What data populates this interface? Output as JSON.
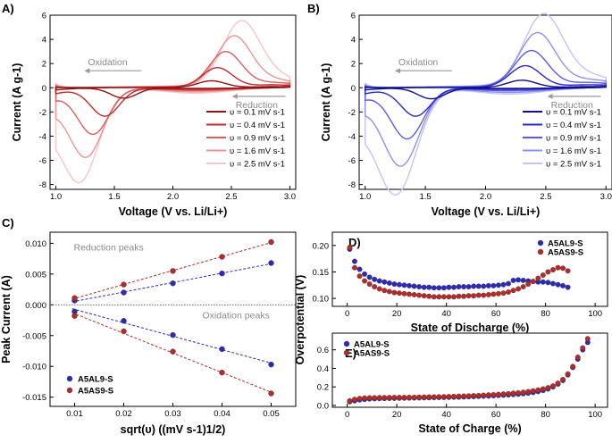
{
  "figure": {
    "panel_labels": [
      "A)",
      "B)",
      "C)",
      "D)",
      "E)"
    ]
  },
  "chart_data": [
    {
      "id": "A",
      "type": "line",
      "title": "",
      "xlabel": "Voltage (V vs. Li/Li+)",
      "ylabel": "Current (A g-1)",
      "xlim": [
        0.95,
        3.05
      ],
      "ylim": [
        -8.4,
        6.0
      ],
      "xticks": [
        1.0,
        1.5,
        2.0,
        2.5,
        3.0
      ],
      "yticks": [
        -8,
        -6,
        -4,
        -2,
        0,
        2,
        4,
        6
      ],
      "legend_position": "lower-right",
      "annotations": [
        {
          "text": "Oxidation",
          "x": 1.35,
          "y": 1.85,
          "arrow": "left"
        },
        {
          "text": "Reduction",
          "x": 2.75,
          "y": -1.3,
          "arrow": "left"
        }
      ],
      "series": [
        {
          "name": "υ = 0.1 mV s-1",
          "color": "#8b1414",
          "ox_peak": [
            2.33,
            0.55
          ],
          "red_peak": [
            1.58,
            -0.85
          ],
          "ox_tail": 0.1,
          "red_tail": -0.18
        },
        {
          "name": "υ = 0.4 mV s-1",
          "color": "#c42a2a",
          "ox_peak": [
            2.38,
            1.6
          ],
          "red_peak": [
            1.42,
            -2.3
          ],
          "ox_tail": 0.25,
          "red_tail": -0.5
        },
        {
          "name": "υ = 0.9 mV s-1",
          "color": "#dc5e5e",
          "ox_peak": [
            2.45,
            2.85
          ],
          "red_peak": [
            1.32,
            -3.7
          ],
          "ox_tail": 0.45,
          "red_tail": -0.9
        },
        {
          "name": "υ = 1.6 mV s-1",
          "color": "#ec9494",
          "ox_peak": [
            2.52,
            4.05
          ],
          "red_peak": [
            1.26,
            -5.4
          ],
          "ox_tail": 0.7,
          "red_tail": -1.5
        },
        {
          "name": "υ = 2.5 mV s-1",
          "color": "#f6c6c6",
          "ox_peak": [
            2.58,
            5.1
          ],
          "red_peak": [
            1.21,
            -7.1
          ],
          "ox_tail": 1.1,
          "red_tail": -2.3
        }
      ]
    },
    {
      "id": "B",
      "type": "line",
      "title": "",
      "xlabel": "Voltage (V vs. Li/Li+)",
      "ylabel": "Current (A g-1)",
      "xlim": [
        0.95,
        3.05
      ],
      "ylim": [
        -8.4,
        6.0
      ],
      "xticks": [
        1.0,
        1.5,
        2.0,
        2.5,
        3.0
      ],
      "yticks": [
        -8,
        -6,
        -4,
        -2,
        0,
        2,
        4,
        6
      ],
      "legend_position": "lower-right",
      "annotations": [
        {
          "text": "Oxidation",
          "x": 1.35,
          "y": 1.85,
          "arrow": "left"
        },
        {
          "text": "Reduction",
          "x": 2.75,
          "y": -1.3,
          "arrow": "left"
        }
      ],
      "series": [
        {
          "name": "υ = 0.1 mV s-1",
          "color": "#10108c",
          "ox_peak": [
            2.3,
            0.6
          ],
          "red_peak": [
            1.55,
            -0.9
          ],
          "ox_tail": 0.1,
          "red_tail": -0.18
        },
        {
          "name": "υ = 0.4 mV s-1",
          "color": "#2828c8",
          "ox_peak": [
            2.33,
            1.75
          ],
          "red_peak": [
            1.42,
            -2.3
          ],
          "ox_tail": 0.25,
          "red_tail": -0.5
        },
        {
          "name": "υ = 0.9 mV s-1",
          "color": "#5c5ce0",
          "ox_peak": [
            2.38,
            2.95
          ],
          "red_peak": [
            1.35,
            -4.1
          ],
          "ox_tail": 0.45,
          "red_tail": -0.9
        },
        {
          "name": "υ = 1.6 mV s-1",
          "color": "#9090ec",
          "ox_peak": [
            2.43,
            4.35
          ],
          "red_peak": [
            1.3,
            -6.2
          ],
          "ox_tail": 0.7,
          "red_tail": -1.5
        },
        {
          "name": "υ = 2.5 mV s-1",
          "color": "#c4c4f6",
          "ox_peak": [
            2.48,
            5.8
          ],
          "red_peak": [
            1.26,
            -8.3
          ],
          "ox_tail": 1.1,
          "red_tail": -2.3
        }
      ]
    },
    {
      "id": "C",
      "type": "scatter",
      "title": "",
      "xlabel": "sqrt(υ) ((mV s-1)1/2)",
      "ylabel": "Peak Current (A)",
      "xlim": [
        0.005,
        0.055
      ],
      "ylim": [
        -0.0165,
        0.0118
      ],
      "xticks": [
        0.01,
        0.02,
        0.03,
        0.04,
        0.05
      ],
      "yticks": [
        -0.015,
        -0.01,
        -0.005,
        0.0,
        0.005,
        0.01
      ],
      "ytick_labels": [
        "-0.015",
        "-0.010",
        "-0.005",
        "0.000",
        "0.005",
        "0.010"
      ],
      "legend_position": "lower-left",
      "annotations": [
        {
          "text": "Reduction peaks",
          "x": 0.008,
          "y": 0.0088
        },
        {
          "text": "Oxidation peaks",
          "x": 0.036,
          "y": -0.0022
        }
      ],
      "x": [
        0.01,
        0.02,
        0.03,
        0.04,
        0.05
      ],
      "series": [
        {
          "name": "A5AL9-S",
          "color": "#2b2bb8",
          "values_reduction": [
            0.0007,
            0.002,
            0.0035,
            0.0051,
            0.0068
          ],
          "values_oxidation": [
            -0.0011,
            -0.0026,
            -0.0049,
            -0.0072,
            -0.0097
          ]
        },
        {
          "name": "A5AS9-S",
          "color": "#b52a2a",
          "values_reduction": [
            0.0011,
            0.0033,
            0.0055,
            0.0078,
            0.0102
          ],
          "values_oxidation": [
            -0.0018,
            -0.0043,
            -0.0076,
            -0.011,
            -0.0144
          ]
        }
      ]
    },
    {
      "id": "D",
      "type": "scatter",
      "title": "",
      "xlabel": "State of Discharge (%)",
      "ylabel": "Overpotential (V)",
      "xlim": [
        -6,
        105
      ],
      "ylim": [
        0.085,
        0.225
      ],
      "xticks": [
        0,
        20,
        40,
        60,
        80,
        100
      ],
      "yticks": [
        0.1,
        0.15,
        0.2
      ],
      "ytick_labels": [
        "0.10",
        "0.15",
        "0.20"
      ],
      "legend_position": "top-right",
      "series": [
        {
          "name": "A5AL9-S",
          "color": "#2b2bb8",
          "x": [
            1,
            3,
            5,
            7,
            9,
            11,
            13,
            15,
            17,
            19,
            21,
            23,
            25,
            27,
            29,
            31,
            33,
            35,
            37,
            39,
            41,
            43,
            45,
            47,
            49,
            51,
            53,
            55,
            57,
            59,
            61,
            63,
            65,
            67,
            69,
            71,
            73,
            75,
            77,
            79,
            81,
            83,
            85,
            87,
            89
          ],
          "values": [
            0.193,
            0.17,
            0.155,
            0.146,
            0.14,
            0.136,
            0.133,
            0.131,
            0.129,
            0.127,
            0.126,
            0.125,
            0.124,
            0.123,
            0.122,
            0.121,
            0.121,
            0.12,
            0.12,
            0.12,
            0.121,
            0.121,
            0.122,
            0.122,
            0.122,
            0.123,
            0.123,
            0.123,
            0.124,
            0.124,
            0.125,
            0.126,
            0.128,
            0.134,
            0.135,
            0.134,
            0.133,
            0.132,
            0.131,
            0.131,
            0.13,
            0.128,
            0.126,
            0.124,
            0.121
          ]
        },
        {
          "name": "A5AS9-S",
          "color": "#b52a2a",
          "x": [
            1,
            3,
            5,
            7,
            9,
            11,
            13,
            15,
            17,
            19,
            21,
            23,
            25,
            27,
            29,
            31,
            33,
            35,
            37,
            39,
            41,
            43,
            45,
            47,
            49,
            51,
            53,
            55,
            57,
            59,
            61,
            63,
            65,
            67,
            69,
            71,
            73,
            75,
            77,
            79,
            81,
            83,
            85,
            87,
            89
          ],
          "values": [
            0.196,
            0.158,
            0.142,
            0.133,
            0.127,
            0.122,
            0.118,
            0.115,
            0.113,
            0.111,
            0.11,
            0.109,
            0.108,
            0.107,
            0.106,
            0.105,
            0.104,
            0.103,
            0.103,
            0.103,
            0.103,
            0.103,
            0.104,
            0.104,
            0.105,
            0.105,
            0.106,
            0.106,
            0.107,
            0.108,
            0.109,
            0.11,
            0.112,
            0.115,
            0.118,
            0.122,
            0.127,
            0.132,
            0.138,
            0.144,
            0.15,
            0.154,
            0.158,
            0.157,
            0.152
          ]
        }
      ]
    },
    {
      "id": "E",
      "type": "scatter",
      "title": "",
      "xlabel": "State of Charge (%)",
      "ylabel": "Overpotential (V)",
      "xlim": [
        -6,
        105
      ],
      "ylim": [
        -0.02,
        0.78
      ],
      "xticks": [
        0,
        20,
        40,
        60,
        80,
        100
      ],
      "yticks": [
        0.0,
        0.2,
        0.4,
        0.6
      ],
      "ytick_labels": [
        "0.0",
        "0.2",
        "0.4",
        "0.6"
      ],
      "legend_position": "top-left",
      "series": [
        {
          "name": "A5AL9-S",
          "color": "#2b2bb8",
          "x": [
            1,
            3,
            5,
            7,
            9,
            11,
            13,
            15,
            17,
            19,
            21,
            23,
            25,
            27,
            29,
            31,
            33,
            35,
            37,
            39,
            41,
            43,
            45,
            47,
            49,
            51,
            53,
            55,
            57,
            59,
            61,
            63,
            65,
            67,
            69,
            71,
            73,
            75,
            77,
            79,
            81,
            83,
            85,
            87,
            89,
            91,
            93,
            95,
            97
          ],
          "values": [
            0.04,
            0.05,
            0.06,
            0.065,
            0.07,
            0.072,
            0.074,
            0.075,
            0.076,
            0.077,
            0.078,
            0.079,
            0.08,
            0.081,
            0.082,
            0.083,
            0.084,
            0.085,
            0.086,
            0.087,
            0.088,
            0.089,
            0.09,
            0.092,
            0.094,
            0.096,
            0.098,
            0.1,
            0.102,
            0.105,
            0.108,
            0.111,
            0.114,
            0.118,
            0.122,
            0.127,
            0.133,
            0.14,
            0.15,
            0.162,
            0.178,
            0.2,
            0.23,
            0.27,
            0.33,
            0.41,
            0.5,
            0.6,
            0.68
          ]
        },
        {
          "name": "A5AS9-S",
          "color": "#b52a2a",
          "x": [
            1,
            3,
            5,
            7,
            9,
            11,
            13,
            15,
            17,
            19,
            21,
            23,
            25,
            27,
            29,
            31,
            33,
            35,
            37,
            39,
            41,
            43,
            45,
            47,
            49,
            51,
            53,
            55,
            57,
            59,
            61,
            63,
            65,
            67,
            69,
            71,
            73,
            75,
            77,
            79,
            81,
            83,
            85,
            87,
            89,
            91,
            93,
            95,
            97
          ],
          "values": [
            0.05,
            0.065,
            0.075,
            0.08,
            0.082,
            0.083,
            0.084,
            0.084,
            0.085,
            0.085,
            0.086,
            0.086,
            0.087,
            0.088,
            0.089,
            0.09,
            0.091,
            0.092,
            0.093,
            0.094,
            0.095,
            0.097,
            0.099,
            0.101,
            0.103,
            0.105,
            0.107,
            0.11,
            0.113,
            0.116,
            0.119,
            0.123,
            0.127,
            0.131,
            0.136,
            0.142,
            0.149,
            0.157,
            0.166,
            0.178,
            0.192,
            0.21,
            0.24,
            0.28,
            0.34,
            0.42,
            0.52,
            0.62,
            0.72
          ]
        }
      ]
    }
  ]
}
